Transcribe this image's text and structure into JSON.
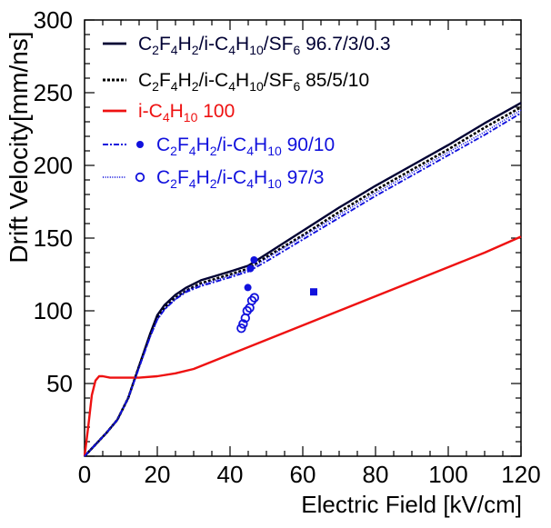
{
  "chart_data": {
    "type": "line",
    "xlabel": "Electric Field [kV/cm]",
    "ylabel": "Drift Velocity[mm/ns]",
    "xlim": [
      0,
      120
    ],
    "ylim": [
      0,
      300
    ],
    "xticks": [
      0,
      20,
      40,
      60,
      80,
      100,
      120
    ],
    "yticks": [
      50,
      100,
      150,
      200,
      250,
      300
    ],
    "grid": false,
    "legend_position": "top-left",
    "series": [
      {
        "name": "C2F4H2/i-C4H10/SF6 96.7/3/0.3",
        "color": "#000033",
        "style": "solid",
        "x": [
          0,
          3,
          6,
          9,
          12,
          15,
          18,
          20,
          22,
          25,
          28,
          32,
          36,
          40,
          45,
          50,
          60,
          70,
          80,
          90,
          100,
          110,
          120
        ],
        "y": [
          0,
          8,
          16,
          25,
          40,
          62,
          84,
          97,
          104,
          111,
          116,
          121,
          124,
          127,
          131,
          139,
          155,
          171,
          186,
          200,
          214,
          229,
          243
        ]
      },
      {
        "name": "C2F4H2/i-C4H10/SF6 85/5/10",
        "color": "#000000",
        "style": "dotted",
        "x": [
          0,
          3,
          6,
          9,
          12,
          15,
          18,
          20,
          22,
          25,
          28,
          32,
          36,
          40,
          45,
          50,
          60,
          70,
          80,
          90,
          100,
          110,
          120
        ],
        "y": [
          0,
          8,
          16,
          25,
          40,
          62,
          83,
          95,
          102,
          109,
          114,
          119,
          122,
          125,
          129,
          137,
          152,
          168,
          183,
          197,
          211,
          226,
          240
        ]
      },
      {
        "name": "i-C4H10 100",
        "color": "#ee1111",
        "style": "solid",
        "x": [
          0,
          1,
          2,
          3,
          4,
          5,
          7,
          10,
          15,
          20,
          25,
          30,
          35,
          40,
          50,
          60,
          70,
          80,
          90,
          100,
          110,
          120
        ],
        "y": [
          0,
          20,
          42,
          52,
          55,
          55,
          54,
          54,
          54,
          55,
          57,
          60,
          65,
          70,
          80,
          90,
          100,
          110,
          120,
          130,
          140,
          151
        ]
      },
      {
        "name": "C2F4H2/i-C4H10 90/10",
        "color": "#1111dd",
        "style": "dashdot",
        "x": [
          0,
          3,
          6,
          9,
          12,
          15,
          18,
          20,
          22,
          25,
          28,
          32,
          36,
          40,
          45,
          50,
          60,
          70,
          80,
          90,
          100,
          110,
          120
        ],
        "y": [
          0,
          8,
          16,
          25,
          40,
          61,
          82,
          94,
          101,
          108,
          113,
          117,
          120,
          123,
          127,
          134,
          149,
          164,
          179,
          193,
          207,
          221,
          236
        ]
      },
      {
        "name": "C2F4H2/i-C4H10 97/3",
        "color": "#1111dd",
        "style": "finedot",
        "x": [
          0,
          3,
          6,
          9,
          12,
          15,
          18,
          20,
          22,
          25,
          28,
          32,
          36,
          40,
          45,
          50,
          60,
          70,
          80,
          90,
          100,
          110,
          120
        ],
        "y": [
          0,
          8,
          16,
          25,
          40,
          61,
          82,
          94,
          101,
          108,
          114,
          118,
          121,
          124,
          128,
          136,
          151,
          166,
          181,
          195,
          209,
          223,
          238
        ]
      }
    ],
    "markers": [
      {
        "name": "C2F4H2/i-C4H10 90/10",
        "shape": "filled-circle",
        "color": "#1111dd",
        "points": [
          [
            44.9,
            116
          ],
          [
            45.6,
            129
          ],
          [
            46.6,
            135
          ]
        ]
      },
      {
        "name": "C2F4H2/i-C4H10 97/3",
        "shape": "open-circle",
        "color": "#1111dd",
        "points": [
          [
            43.1,
            88
          ],
          [
            43.6,
            91
          ],
          [
            44.2,
            95
          ],
          [
            44.7,
            100
          ],
          [
            45.4,
            102
          ],
          [
            46.0,
            107
          ],
          [
            46.7,
            109
          ]
        ]
      },
      {
        "name": "",
        "shape": "filled-square",
        "color": "#1111dd",
        "points": [
          [
            63.0,
            113
          ]
        ]
      }
    ],
    "legend": [
      {
        "style": "solid",
        "color": "#000033",
        "marker": "none",
        "parts": [
          [
            "C",
            ""
          ],
          [
            "2",
            "sub"
          ],
          [
            "F",
            ""
          ],
          [
            "4",
            "sub"
          ],
          [
            "H",
            ""
          ],
          [
            "2",
            "sub"
          ],
          [
            "/i-C",
            ""
          ],
          [
            "4",
            "sub"
          ],
          [
            "H",
            ""
          ],
          [
            "10",
            "sub"
          ],
          [
            "/SF",
            ""
          ],
          [
            "6",
            "sub"
          ],
          [
            " 96.7/3/0.3",
            ""
          ]
        ]
      },
      {
        "style": "dotted",
        "color": "#000000",
        "marker": "none",
        "parts": [
          [
            "C",
            ""
          ],
          [
            "2",
            "sub"
          ],
          [
            "F",
            ""
          ],
          [
            "4",
            "sub"
          ],
          [
            "H",
            ""
          ],
          [
            "2",
            "sub"
          ],
          [
            "/i-C",
            ""
          ],
          [
            "4",
            "sub"
          ],
          [
            "H",
            ""
          ],
          [
            "10",
            "sub"
          ],
          [
            "/SF",
            ""
          ],
          [
            "6",
            "sub"
          ],
          [
            " 85/5/10",
            ""
          ]
        ]
      },
      {
        "style": "solid",
        "color": "#ee1111",
        "marker": "none",
        "parts": [
          [
            "i-C",
            ""
          ],
          [
            "4",
            "sub"
          ],
          [
            "H",
            ""
          ],
          [
            "10",
            "sub"
          ],
          [
            " 100",
            ""
          ]
        ]
      },
      {
        "style": "dashdot",
        "color": "#1111dd",
        "marker": "filled-circle",
        "parts": [
          [
            "C",
            ""
          ],
          [
            "2",
            "sub"
          ],
          [
            "F",
            ""
          ],
          [
            "4",
            "sub"
          ],
          [
            "H",
            ""
          ],
          [
            "2",
            "sub"
          ],
          [
            "/i-C",
            ""
          ],
          [
            "4",
            "sub"
          ],
          [
            "H",
            ""
          ],
          [
            "10",
            "sub"
          ],
          [
            " 90/10",
            ""
          ]
        ]
      },
      {
        "style": "finedot",
        "color": "#1111dd",
        "marker": "open-circle",
        "parts": [
          [
            "C",
            ""
          ],
          [
            "2",
            "sub"
          ],
          [
            "F",
            ""
          ],
          [
            "4",
            "sub"
          ],
          [
            "H",
            ""
          ],
          [
            "2",
            "sub"
          ],
          [
            "/i-C",
            ""
          ],
          [
            "4",
            "sub"
          ],
          [
            "H",
            ""
          ],
          [
            "10",
            "sub"
          ],
          [
            " 97/3",
            ""
          ]
        ]
      }
    ]
  }
}
